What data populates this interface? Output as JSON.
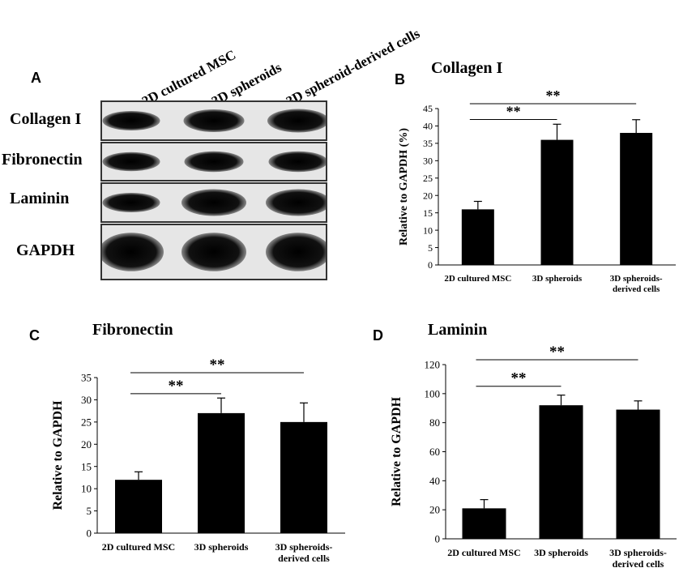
{
  "panel_labels": {
    "A": "A",
    "B": "B",
    "C": "C",
    "D": "D"
  },
  "blot": {
    "lanes": [
      "2D cultured MSC",
      "3D spheroids",
      "3D spheroid-derived cells"
    ],
    "rows": [
      {
        "label": "Collagen I",
        "intensities": [
          0.55,
          0.75,
          0.8
        ]
      },
      {
        "label": "Fibronectin",
        "intensities": [
          0.55,
          0.65,
          0.65
        ]
      },
      {
        "label": "Laminin",
        "intensities": [
          0.55,
          1.0,
          1.0
        ]
      },
      {
        "label": "GAPDH",
        "intensities": [
          1.0,
          1.0,
          1.0
        ]
      }
    ]
  },
  "chart_data": [
    {
      "type": "bar",
      "panel": "B",
      "title": "Collagen I",
      "ylabel": "Relative to GAPDH  (%)",
      "categories": [
        "2D cultured MSC",
        "3D spheroids",
        "3D spheroids- derived cells"
      ],
      "values": [
        16,
        36,
        38
      ],
      "errors": [
        2.3,
        4.5,
        3.8
      ],
      "ylim": [
        0,
        45
      ],
      "yticks": [
        0,
        5,
        10,
        15,
        20,
        25,
        30,
        35,
        40,
        45
      ],
      "significance": [
        {
          "from": 0,
          "to": 1,
          "label": "**"
        },
        {
          "from": 0,
          "to": 2,
          "label": "**"
        }
      ],
      "color": "#000000"
    },
    {
      "type": "bar",
      "panel": "C",
      "title": "Fibronectin",
      "ylabel": "Relative to GAPDH",
      "categories": [
        "2D cultured MSC",
        "3D spheroids",
        "3D spheroids- derived cells"
      ],
      "values": [
        12,
        27,
        25
      ],
      "errors": [
        1.8,
        3.4,
        4.3
      ],
      "ylim": [
        0,
        35
      ],
      "yticks": [
        0,
        5,
        10,
        15,
        20,
        25,
        30,
        35
      ],
      "significance": [
        {
          "from": 0,
          "to": 1,
          "label": "**"
        },
        {
          "from": 0,
          "to": 2,
          "label": "**"
        }
      ],
      "color": "#000000"
    },
    {
      "type": "bar",
      "panel": "D",
      "title": "Laminin",
      "ylabel": "Relative to GAPDH",
      "categories": [
        "2D cultured MSC",
        "3D spheroids",
        "3D spheroids- derived cells"
      ],
      "values": [
        21,
        92,
        89
      ],
      "errors": [
        6,
        7,
        6
      ],
      "ylim": [
        0,
        120
      ],
      "yticks": [
        0,
        20,
        40,
        60,
        80,
        100,
        120
      ],
      "significance": [
        {
          "from": 0,
          "to": 1,
          "label": "**"
        },
        {
          "from": 0,
          "to": 2,
          "label": "**"
        }
      ],
      "color": "#000000"
    }
  ]
}
